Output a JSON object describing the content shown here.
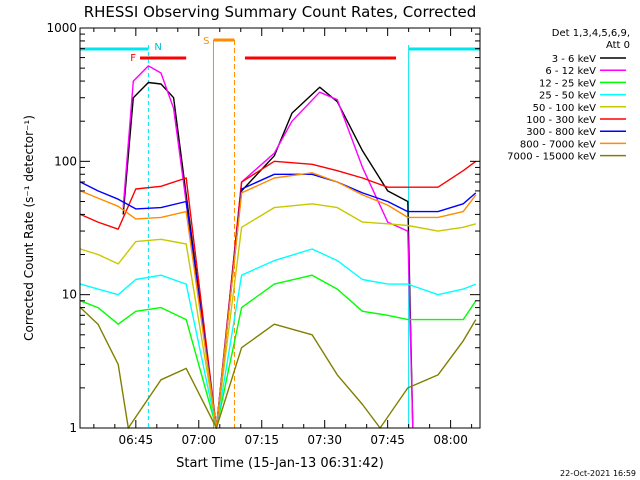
{
  "chart_data": {
    "type": "line",
    "title": "RHESSI Observing Summary Count Rates, Corrected",
    "xlabel": "Start Time (15-Jan-13 06:31:42)",
    "ylabel": "Corrected Count Rate (s⁻¹ detector⁻¹)",
    "yscale": "log",
    "xlim": [
      "06:31:42",
      "08:07:00"
    ],
    "ylim": [
      1,
      1000
    ],
    "x_ticks": [
      "06:45",
      "07:00",
      "07:15",
      "07:30",
      "07:45",
      "08:00"
    ],
    "y_ticks": [
      "1",
      "10",
      "100",
      "1000"
    ],
    "grid": false,
    "legend": {
      "placement": "right",
      "header": [
        "Det 1,3,4,5,6,9,",
        "Att 0"
      ]
    },
    "timestamp": "22-Oct-2021 16:59",
    "bands": {
      "night": [
        {
          "start": "06:31:42",
          "end": "06:48:00"
        },
        {
          "start": "07:50:00",
          "end": "08:07:00"
        }
      ],
      "saa": {
        "start": "07:03:30",
        "end": "07:08:30"
      },
      "flare": [
        {
          "start": "06:46:00",
          "end": "06:57:00"
        },
        {
          "start": "07:11:00",
          "end": "07:47:00"
        }
      ],
      "labels": {
        "flare": "F",
        "night": "N",
        "saa": "S"
      }
    },
    "series": [
      {
        "name": "3 - 6 keV",
        "color": "#000000",
        "values": [
          [
            6.7,
            40
          ],
          [
            6.74,
            300
          ],
          [
            6.8,
            390
          ],
          [
            6.85,
            380
          ],
          [
            6.9,
            300
          ],
          [
            7.07,
            1
          ],
          [
            7.17,
            60
          ],
          [
            7.3,
            110
          ],
          [
            7.37,
            230
          ],
          [
            7.48,
            360
          ],
          [
            7.55,
            280
          ],
          [
            7.65,
            120
          ],
          [
            7.75,
            60
          ],
          [
            7.83,
            50
          ],
          [
            7.85,
            1
          ]
        ]
      },
      {
        "name": "6 - 12 keV",
        "color": "#ff00ff",
        "values": [
          [
            6.7,
            45
          ],
          [
            6.74,
            400
          ],
          [
            6.8,
            520
          ],
          [
            6.85,
            460
          ],
          [
            6.9,
            250
          ],
          [
            7.07,
            1
          ],
          [
            7.17,
            70
          ],
          [
            7.3,
            115
          ],
          [
            7.37,
            200
          ],
          [
            7.48,
            330
          ],
          [
            7.55,
            290
          ],
          [
            7.65,
            90
          ],
          [
            7.75,
            35
          ],
          [
            7.83,
            30
          ],
          [
            7.85,
            1
          ]
        ]
      },
      {
        "name": "12 - 25 keV",
        "color": "#00ff00",
        "values": [
          [
            6.53,
            9
          ],
          [
            6.6,
            8
          ],
          [
            6.68,
            6
          ],
          [
            6.75,
            7.5
          ],
          [
            6.85,
            8
          ],
          [
            6.95,
            6.5
          ],
          [
            7.07,
            1
          ],
          [
            7.17,
            8
          ],
          [
            7.3,
            12
          ],
          [
            7.45,
            14
          ],
          [
            7.55,
            11
          ],
          [
            7.65,
            7.5
          ],
          [
            7.75,
            7
          ],
          [
            7.83,
            6.5
          ],
          [
            7.95,
            6.5
          ],
          [
            8.05,
            6.5
          ],
          [
            8.1,
            9
          ]
        ]
      },
      {
        "name": "25 - 50 keV",
        "color": "#00ffff",
        "values": [
          [
            6.53,
            12
          ],
          [
            6.6,
            11
          ],
          [
            6.68,
            10
          ],
          [
            6.75,
            13
          ],
          [
            6.85,
            14
          ],
          [
            6.95,
            12
          ],
          [
            7.07,
            1
          ],
          [
            7.17,
            14
          ],
          [
            7.3,
            18
          ],
          [
            7.45,
            22
          ],
          [
            7.55,
            18
          ],
          [
            7.65,
            13
          ],
          [
            7.75,
            12
          ],
          [
            7.83,
            12
          ],
          [
            7.95,
            10
          ],
          [
            8.05,
            11
          ],
          [
            8.1,
            12
          ]
        ]
      },
      {
        "name": "50 - 100 keV",
        "color": "#c8c800",
        "values": [
          [
            6.53,
            22
          ],
          [
            6.6,
            20
          ],
          [
            6.68,
            17
          ],
          [
            6.75,
            25
          ],
          [
            6.85,
            26
          ],
          [
            6.95,
            24
          ],
          [
            7.07,
            1
          ],
          [
            7.17,
            32
          ],
          [
            7.3,
            45
          ],
          [
            7.45,
            48
          ],
          [
            7.55,
            45
          ],
          [
            7.65,
            35
          ],
          [
            7.75,
            34
          ],
          [
            7.83,
            33
          ],
          [
            7.95,
            30
          ],
          [
            8.05,
            32
          ],
          [
            8.1,
            34
          ]
        ]
      },
      {
        "name": "100 - 300 keV",
        "color": "#ff0000",
        "values": [
          [
            6.53,
            40
          ],
          [
            6.6,
            35
          ],
          [
            6.68,
            31
          ],
          [
            6.75,
            62
          ],
          [
            6.85,
            65
          ],
          [
            6.95,
            75
          ],
          [
            7.07,
            1
          ],
          [
            7.17,
            70
          ],
          [
            7.3,
            100
          ],
          [
            7.45,
            95
          ],
          [
            7.55,
            85
          ],
          [
            7.65,
            75
          ],
          [
            7.75,
            64
          ],
          [
            7.83,
            64
          ],
          [
            7.95,
            64
          ],
          [
            8.05,
            85
          ],
          [
            8.1,
            100
          ]
        ]
      },
      {
        "name": "300 - 800 keV",
        "color": "#0000ff",
        "values": [
          [
            6.53,
            70
          ],
          [
            6.6,
            60
          ],
          [
            6.68,
            52
          ],
          [
            6.75,
            44
          ],
          [
            6.85,
            45
          ],
          [
            6.95,
            50
          ],
          [
            7.07,
            1
          ],
          [
            7.17,
            62
          ],
          [
            7.3,
            80
          ],
          [
            7.45,
            80
          ],
          [
            7.55,
            70
          ],
          [
            7.65,
            58
          ],
          [
            7.75,
            50
          ],
          [
            7.83,
            42
          ],
          [
            7.95,
            42
          ],
          [
            8.05,
            48
          ],
          [
            8.1,
            58
          ]
        ]
      },
      {
        "name": "800 - 7000 keV",
        "color": "#ff8c00",
        "values": [
          [
            6.53,
            60
          ],
          [
            6.6,
            53
          ],
          [
            6.68,
            46
          ],
          [
            6.75,
            37
          ],
          [
            6.85,
            38
          ],
          [
            6.95,
            42
          ],
          [
            7.07,
            1
          ],
          [
            7.17,
            58
          ],
          [
            7.3,
            75
          ],
          [
            7.45,
            82
          ],
          [
            7.55,
            70
          ],
          [
            7.65,
            56
          ],
          [
            7.75,
            47
          ],
          [
            7.83,
            38
          ],
          [
            7.95,
            38
          ],
          [
            8.05,
            42
          ],
          [
            8.1,
            56
          ]
        ]
      },
      {
        "name": "7000 - 15000 keV",
        "color": "#808000",
        "values": [
          [
            6.53,
            8
          ],
          [
            6.6,
            6
          ],
          [
            6.68,
            3
          ],
          [
            6.72,
            1
          ],
          [
            6.85,
            2.3
          ],
          [
            6.95,
            2.8
          ],
          [
            7.07,
            1
          ],
          [
            7.17,
            4
          ],
          [
            7.3,
            6
          ],
          [
            7.45,
            5
          ],
          [
            7.55,
            2.5
          ],
          [
            7.65,
            1.5
          ],
          [
            7.72,
            1
          ],
          [
            7.83,
            2
          ],
          [
            7.95,
            2.5
          ],
          [
            8.05,
            4.5
          ],
          [
            8.1,
            6.5
          ]
        ]
      }
    ]
  }
}
